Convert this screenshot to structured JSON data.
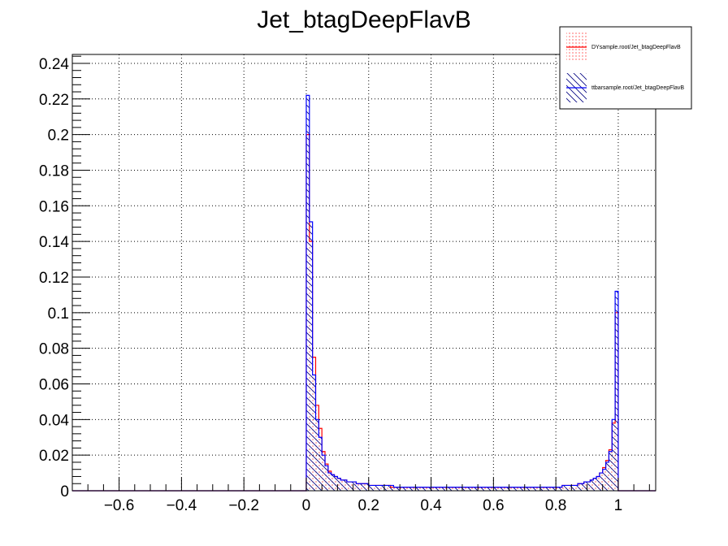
{
  "chart_data": {
    "type": "histogram",
    "title": "Jet_btagDeepFlavB",
    "xlabel": "",
    "ylabel": "",
    "xlim": [
      -0.75,
      1.12
    ],
    "ylim": [
      0,
      0.245
    ],
    "grid": true,
    "legend_position": "top-right",
    "x_ticks": [
      -0.6,
      -0.4,
      -0.2,
      0,
      0.2,
      0.4,
      0.6,
      0.8,
      1
    ],
    "x_tick_labels": [
      "−0.6",
      "−0.4",
      "−0.2",
      "0",
      "0.2",
      "0.4",
      "0.6",
      "0.8",
      "1"
    ],
    "y_ticks": [
      0,
      0.02,
      0.04,
      0.06,
      0.08,
      0.1,
      0.12,
      0.14,
      0.16,
      0.18,
      0.2,
      0.22,
      0.24
    ],
    "y_tick_labels": [
      "0",
      "0.02",
      "0.04",
      "0.06",
      "0.08",
      "0.1",
      "0.12",
      "0.14",
      "0.16",
      "0.18",
      "0.2",
      "0.22",
      "0.24"
    ],
    "bin_width": 0.01,
    "bins_start": 0,
    "series": [
      {
        "name": "DYsample.root/Jet_btagDeepFlavB",
        "color": "#ff0000",
        "fill": "dots",
        "values": [
          0.2,
          0.14,
          0.075,
          0.048,
          0.035,
          0.022,
          0.015,
          0.011,
          0.009,
          0.008,
          0.007,
          0.006,
          0.006,
          0.005,
          0.005,
          0.005,
          0.004,
          0.004,
          0.004,
          0.004,
          0.003,
          0.003,
          0.003,
          0.003,
          0.003,
          0.003,
          0.003,
          0.002,
          0.002,
          0.002,
          0.002,
          0.002,
          0.002,
          0.002,
          0.002,
          0.002,
          0.002,
          0.002,
          0.002,
          0.002,
          0.002,
          0.002,
          0.002,
          0.002,
          0.002,
          0.002,
          0.002,
          0.002,
          0.002,
          0.002,
          0.002,
          0.002,
          0.002,
          0.002,
          0.002,
          0.002,
          0.002,
          0.002,
          0.002,
          0.002,
          0.002,
          0.002,
          0.002,
          0.002,
          0.002,
          0.002,
          0.002,
          0.002,
          0.002,
          0.002,
          0.002,
          0.002,
          0.002,
          0.002,
          0.002,
          0.002,
          0.002,
          0.002,
          0.002,
          0.002,
          0.002,
          0.002,
          0.003,
          0.003,
          0.003,
          0.003,
          0.003,
          0.004,
          0.004,
          0.005,
          0.005,
          0.006,
          0.007,
          0.008,
          0.01,
          0.013,
          0.017,
          0.023,
          0.038,
          0.1
        ]
      },
      {
        "name": "ttbarsample.root/Jet_btagDeepFlavB",
        "color": "#0000ff",
        "fill": "hatch",
        "values": [
          0.222,
          0.151,
          0.065,
          0.04,
          0.03,
          0.02,
          0.014,
          0.01,
          0.009,
          0.008,
          0.007,
          0.006,
          0.006,
          0.005,
          0.005,
          0.005,
          0.004,
          0.004,
          0.004,
          0.004,
          0.003,
          0.003,
          0.003,
          0.003,
          0.003,
          0.003,
          0.003,
          0.003,
          0.002,
          0.002,
          0.002,
          0.002,
          0.002,
          0.002,
          0.002,
          0.002,
          0.002,
          0.002,
          0.002,
          0.002,
          0.002,
          0.002,
          0.002,
          0.002,
          0.002,
          0.002,
          0.002,
          0.002,
          0.002,
          0.002,
          0.002,
          0.002,
          0.002,
          0.002,
          0.002,
          0.002,
          0.002,
          0.002,
          0.002,
          0.002,
          0.002,
          0.002,
          0.002,
          0.002,
          0.002,
          0.002,
          0.002,
          0.002,
          0.002,
          0.002,
          0.002,
          0.002,
          0.002,
          0.002,
          0.002,
          0.002,
          0.002,
          0.002,
          0.002,
          0.002,
          0.002,
          0.002,
          0.003,
          0.003,
          0.003,
          0.003,
          0.003,
          0.004,
          0.004,
          0.005,
          0.005,
          0.006,
          0.007,
          0.008,
          0.01,
          0.012,
          0.016,
          0.022,
          0.04,
          0.112
        ]
      }
    ]
  }
}
